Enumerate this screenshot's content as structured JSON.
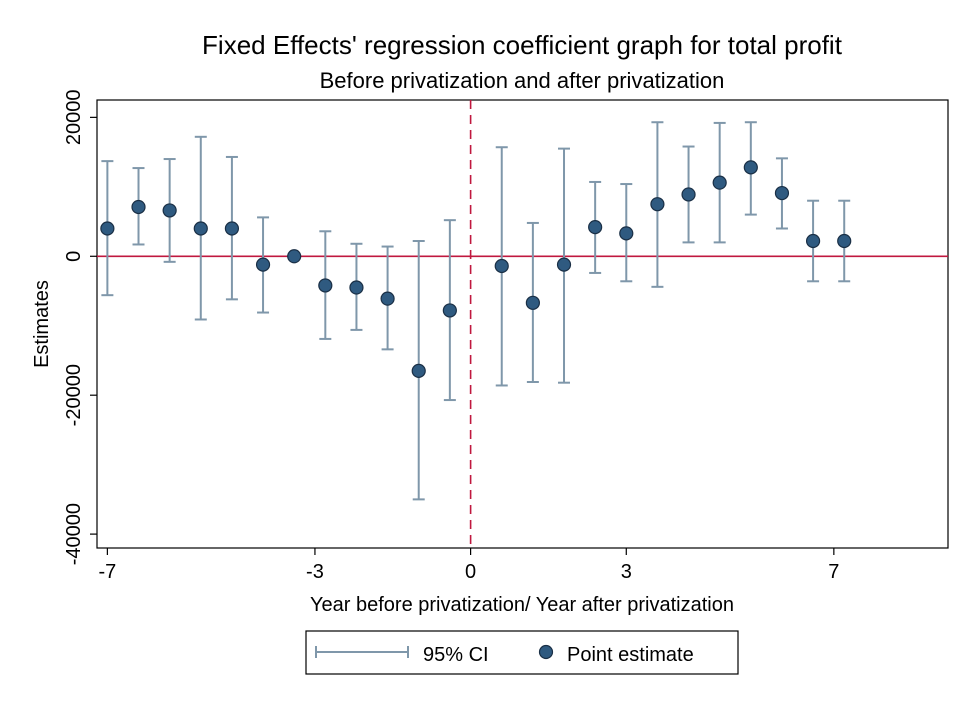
{
  "chart_data": {
    "type": "scatter",
    "title": "Fixed Effects' regression coefficient graph for total profit",
    "subtitle": "Before privatization and after privatization",
    "xlabel": "Year before privatization/ Year after privatization",
    "ylabel": "Estimates",
    "xlim": [
      -7.2,
      9.2
    ],
    "ylim": [
      -42000,
      22500
    ],
    "xticks": [
      {
        "value": -7,
        "label": "-7"
      },
      {
        "value": -3,
        "label": "-3"
      },
      {
        "value": 0,
        "label": "0"
      },
      {
        "value": 3,
        "label": "3"
      },
      {
        "value": 7,
        "label": "7"
      }
    ],
    "yticks": [
      {
        "value": 20000,
        "label": "20000"
      },
      {
        "value": 0,
        "label": "0"
      },
      {
        "value": -20000,
        "label": "-20000"
      },
      {
        "value": -40000,
        "label": "-40000"
      }
    ],
    "reference_lines": {
      "horizontal_y": 0,
      "vertical_x": 0
    },
    "grid": false,
    "legend_position": "bottom",
    "colors": {
      "point": "#2f5a80",
      "point_outline": "#1a2f45",
      "ci": "#7f97aa",
      "hline": "#c0183f",
      "vline": "#c0183f"
    },
    "series": [
      {
        "name": "Point estimate",
        "x": [
          -7,
          -6.4,
          -5.8,
          -5.2,
          -4.6,
          -4,
          -3.4,
          -2.8,
          -2.2,
          -1.6,
          -1,
          -0.4,
          0.6,
          1.2,
          1.8,
          2.4,
          3,
          3.6,
          4.2,
          4.8,
          5.4,
          6,
          6.6,
          7.2
        ],
        "y": [
          4000,
          7100,
          6600,
          4000,
          4000,
          -1200,
          0,
          -4200,
          -4500,
          -6100,
          -16500,
          -7800,
          -1400,
          -6700,
          -1200,
          4200,
          3300,
          7500,
          8900,
          10600,
          12800,
          9100,
          2200,
          2200
        ]
      },
      {
        "name": "95% CI",
        "x": [
          -7,
          -6.4,
          -5.8,
          -5.2,
          -4.6,
          -4,
          -3.4,
          -2.8,
          -2.2,
          -1.6,
          -1,
          -0.4,
          0.6,
          1.2,
          1.8,
          2.4,
          3,
          3.6,
          4.2,
          4.8,
          5.4,
          6,
          6.6,
          7.2
        ],
        "low": [
          -5600,
          1700,
          -800,
          -9100,
          -6200,
          -8100,
          0,
          -11900,
          -10600,
          -13400,
          -35000,
          -20700,
          -18600,
          -18100,
          -18200,
          -2400,
          -3600,
          -4400,
          2000,
          2000,
          6000,
          4000,
          -3600,
          -3600
        ],
        "high": [
          13700,
          12700,
          14000,
          17200,
          14300,
          5600,
          0,
          3600,
          1800,
          1400,
          2200,
          5200,
          15700,
          4800,
          15500,
          10700,
          10400,
          19300,
          15800,
          19200,
          19300,
          14100,
          8000,
          8000
        ]
      }
    ]
  },
  "legend": {
    "items": [
      {
        "label": "95% CI"
      },
      {
        "label": "Point estimate"
      }
    ]
  }
}
